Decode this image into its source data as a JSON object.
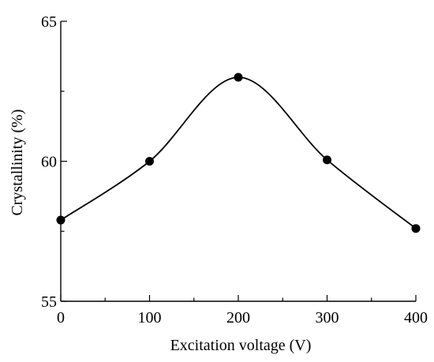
{
  "chart_data": {
    "type": "line",
    "xlabel": "Excitation voltage (V)",
    "ylabel": "Crystallinity (%)",
    "xlim": [
      0,
      400
    ],
    "ylim": [
      55,
      65
    ],
    "xticks": [
      0,
      100,
      200,
      300,
      400
    ],
    "yticks": [
      55,
      60,
      65
    ],
    "grid": false,
    "smooth": true,
    "markers": "filled-circle",
    "series": [
      {
        "x": [
          0,
          100,
          200,
          300,
          400
        ],
        "y": [
          57.9,
          60.0,
          63.0,
          60.05,
          57.6
        ]
      }
    ]
  }
}
